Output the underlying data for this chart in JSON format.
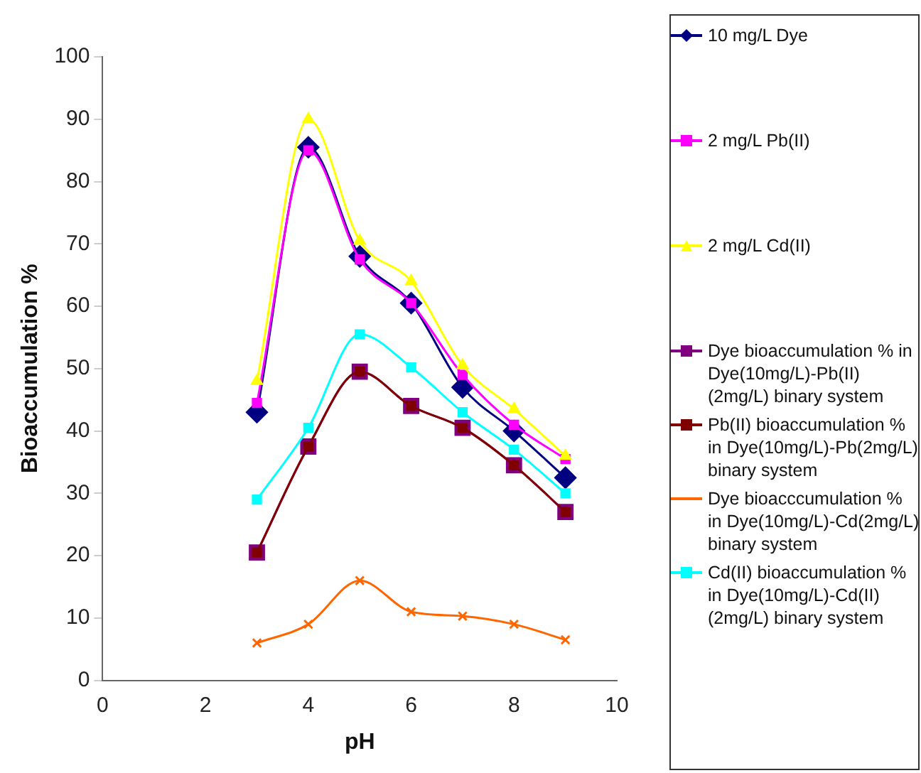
{
  "chart_data": {
    "type": "line",
    "xlabel": "pH",
    "ylabel": "Bioaccumulation %",
    "x": [
      3,
      4,
      5,
      6,
      7,
      8,
      9
    ],
    "xlim": [
      0,
      10
    ],
    "xticks": [
      0,
      2,
      4,
      6,
      8,
      10
    ],
    "ylim": [
      0,
      100
    ],
    "yticks": [
      0,
      10,
      20,
      30,
      40,
      50,
      60,
      70,
      80,
      90,
      100
    ],
    "grid": false,
    "legend": "right",
    "line_style": "solid",
    "series": [
      {
        "name": "10 mg/L Dye",
        "color": "#000080",
        "marker": "diamond",
        "values": [
          43,
          85.5,
          68,
          60.5,
          47,
          40,
          32.5
        ]
      },
      {
        "name": "2 mg/L Pb(II)",
        "color": "#ff00ff",
        "marker": "square",
        "values": [
          44.5,
          85,
          67.5,
          60.5,
          49,
          41,
          35.5
        ]
      },
      {
        "name": "2 mg/L Cd(II)",
        "color": "#ffff00",
        "marker": "triangle",
        "values": [
          48,
          90,
          70.5,
          64,
          50.5,
          43.5,
          36
        ]
      },
      {
        "name": "Dye bioaccumulation % in Dye(10mg/L)-Pb(II)(2mg/L) binary system",
        "color": "#800080",
        "marker": "square",
        "values": [
          20.5,
          37.5,
          49.5,
          44,
          40.5,
          34.5,
          27
        ]
      },
      {
        "name": "Pb(II) bioaccumulation % in Dye(10mg/L)-Pb(2mg/L) binary system",
        "color": "#800000",
        "marker": "square",
        "values": [
          20.5,
          37.5,
          49.5,
          44,
          40.5,
          34.5,
          27
        ]
      },
      {
        "name": "Dye bioacccumulation % in Dye(10mg/L)-Cd(2mg/L) binary system",
        "color": "#ff6600",
        "marker": "cross",
        "values": [
          6,
          9,
          16,
          11,
          10.3,
          9,
          6.5
        ]
      },
      {
        "name": "Cd(II) bioaccumulation % in Dye(10mg/L)-Cd(II)(2mg/L) binary system",
        "color": "#00ffff",
        "marker": "square",
        "values": [
          29,
          40.5,
          55.5,
          50.2,
          43,
          37,
          30
        ]
      }
    ]
  }
}
